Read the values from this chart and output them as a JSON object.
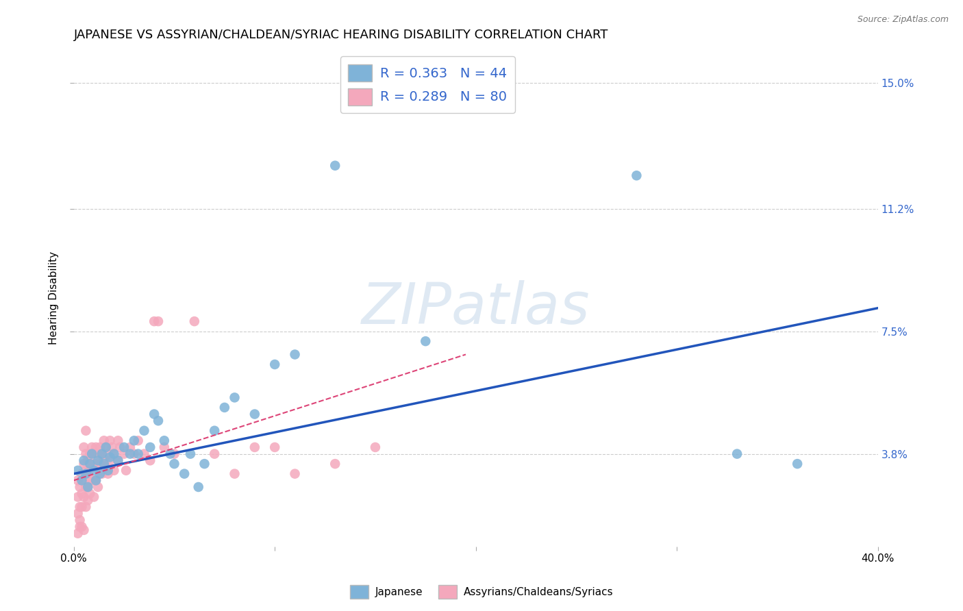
{
  "title": "JAPANESE VS ASSYRIAN/CHALDEAN/SYRIAC HEARING DISABILITY CORRELATION CHART",
  "source": "Source: ZipAtlas.com",
  "ylabel": "Hearing Disability",
  "ytick_labels": [
    "3.8%",
    "7.5%",
    "11.2%",
    "15.0%"
  ],
  "ytick_vals": [
    0.038,
    0.075,
    0.112,
    0.15
  ],
  "xlim": [
    0.0,
    0.4
  ],
  "ylim": [
    0.01,
    0.16
  ],
  "background_color": "#ffffff",
  "grid_color": "#cccccc",
  "watermark": "ZIPatlas",
  "legend": {
    "blue_R": "0.363",
    "blue_N": "44",
    "pink_R": "0.289",
    "pink_N": "80"
  },
  "blue_scatter": [
    [
      0.002,
      0.033
    ],
    [
      0.004,
      0.03
    ],
    [
      0.005,
      0.036
    ],
    [
      0.006,
      0.032
    ],
    [
      0.007,
      0.028
    ],
    [
      0.008,
      0.035
    ],
    [
      0.009,
      0.038
    ],
    [
      0.01,
      0.033
    ],
    [
      0.011,
      0.03
    ],
    [
      0.012,
      0.036
    ],
    [
      0.013,
      0.032
    ],
    [
      0.014,
      0.038
    ],
    [
      0.015,
      0.035
    ],
    [
      0.016,
      0.04
    ],
    [
      0.017,
      0.033
    ],
    [
      0.018,
      0.037
    ],
    [
      0.02,
      0.038
    ],
    [
      0.022,
      0.036
    ],
    [
      0.025,
      0.04
    ],
    [
      0.028,
      0.038
    ],
    [
      0.03,
      0.042
    ],
    [
      0.032,
      0.038
    ],
    [
      0.035,
      0.045
    ],
    [
      0.038,
      0.04
    ],
    [
      0.04,
      0.05
    ],
    [
      0.042,
      0.048
    ],
    [
      0.045,
      0.042
    ],
    [
      0.048,
      0.038
    ],
    [
      0.05,
      0.035
    ],
    [
      0.055,
      0.032
    ],
    [
      0.058,
      0.038
    ],
    [
      0.062,
      0.028
    ],
    [
      0.065,
      0.035
    ],
    [
      0.07,
      0.045
    ],
    [
      0.075,
      0.052
    ],
    [
      0.08,
      0.055
    ],
    [
      0.09,
      0.05
    ],
    [
      0.1,
      0.065
    ],
    [
      0.11,
      0.068
    ],
    [
      0.13,
      0.125
    ],
    [
      0.28,
      0.122
    ],
    [
      0.175,
      0.072
    ],
    [
      0.33,
      0.038
    ],
    [
      0.36,
      0.035
    ]
  ],
  "pink_scatter": [
    [
      0.002,
      0.03
    ],
    [
      0.002,
      0.025
    ],
    [
      0.002,
      0.02
    ],
    [
      0.003,
      0.028
    ],
    [
      0.003,
      0.022
    ],
    [
      0.003,
      0.018
    ],
    [
      0.004,
      0.032
    ],
    [
      0.004,
      0.026
    ],
    [
      0.004,
      0.022
    ],
    [
      0.005,
      0.035
    ],
    [
      0.005,
      0.03
    ],
    [
      0.005,
      0.025
    ],
    [
      0.005,
      0.04
    ],
    [
      0.006,
      0.038
    ],
    [
      0.006,
      0.033
    ],
    [
      0.006,
      0.028
    ],
    [
      0.006,
      0.022
    ],
    [
      0.007,
      0.036
    ],
    [
      0.007,
      0.032
    ],
    [
      0.007,
      0.028
    ],
    [
      0.007,
      0.024
    ],
    [
      0.008,
      0.038
    ],
    [
      0.008,
      0.034
    ],
    [
      0.008,
      0.03
    ],
    [
      0.008,
      0.026
    ],
    [
      0.009,
      0.04
    ],
    [
      0.009,
      0.035
    ],
    [
      0.009,
      0.03
    ],
    [
      0.01,
      0.038
    ],
    [
      0.01,
      0.034
    ],
    [
      0.01,
      0.03
    ],
    [
      0.01,
      0.025
    ],
    [
      0.011,
      0.04
    ],
    [
      0.011,
      0.035
    ],
    [
      0.011,
      0.03
    ],
    [
      0.012,
      0.038
    ],
    [
      0.012,
      0.034
    ],
    [
      0.012,
      0.028
    ],
    [
      0.013,
      0.04
    ],
    [
      0.013,
      0.035
    ],
    [
      0.014,
      0.038
    ],
    [
      0.014,
      0.032
    ],
    [
      0.015,
      0.042
    ],
    [
      0.015,
      0.036
    ],
    [
      0.016,
      0.04
    ],
    [
      0.016,
      0.034
    ],
    [
      0.017,
      0.038
    ],
    [
      0.017,
      0.032
    ],
    [
      0.018,
      0.042
    ],
    [
      0.018,
      0.036
    ],
    [
      0.019,
      0.04
    ],
    [
      0.02,
      0.038
    ],
    [
      0.02,
      0.033
    ],
    [
      0.022,
      0.042
    ],
    [
      0.022,
      0.036
    ],
    [
      0.023,
      0.04
    ],
    [
      0.025,
      0.038
    ],
    [
      0.026,
      0.033
    ],
    [
      0.028,
      0.04
    ],
    [
      0.03,
      0.038
    ],
    [
      0.032,
      0.042
    ],
    [
      0.035,
      0.038
    ],
    [
      0.038,
      0.036
    ],
    [
      0.04,
      0.078
    ],
    [
      0.042,
      0.078
    ],
    [
      0.045,
      0.04
    ],
    [
      0.05,
      0.038
    ],
    [
      0.06,
      0.078
    ],
    [
      0.07,
      0.038
    ],
    [
      0.08,
      0.032
    ],
    [
      0.09,
      0.04
    ],
    [
      0.1,
      0.04
    ],
    [
      0.11,
      0.032
    ],
    [
      0.13,
      0.035
    ],
    [
      0.002,
      0.014
    ],
    [
      0.003,
      0.016
    ],
    [
      0.004,
      0.016
    ],
    [
      0.005,
      0.015
    ],
    [
      0.15,
      0.04
    ],
    [
      0.006,
      0.045
    ]
  ],
  "blue_line_x": [
    0.0,
    0.4
  ],
  "blue_line_y": [
    0.032,
    0.082
  ],
  "pink_line_x": [
    0.0,
    0.195
  ],
  "pink_line_y": [
    0.03,
    0.068
  ],
  "blue_color": "#7fb3d8",
  "pink_color": "#f4a8bc",
  "blue_line_color": "#2255bb",
  "pink_line_color": "#dd4477",
  "title_fontsize": 13,
  "axis_fontsize": 11,
  "tick_fontsize": 11,
  "legend_fontsize": 14
}
